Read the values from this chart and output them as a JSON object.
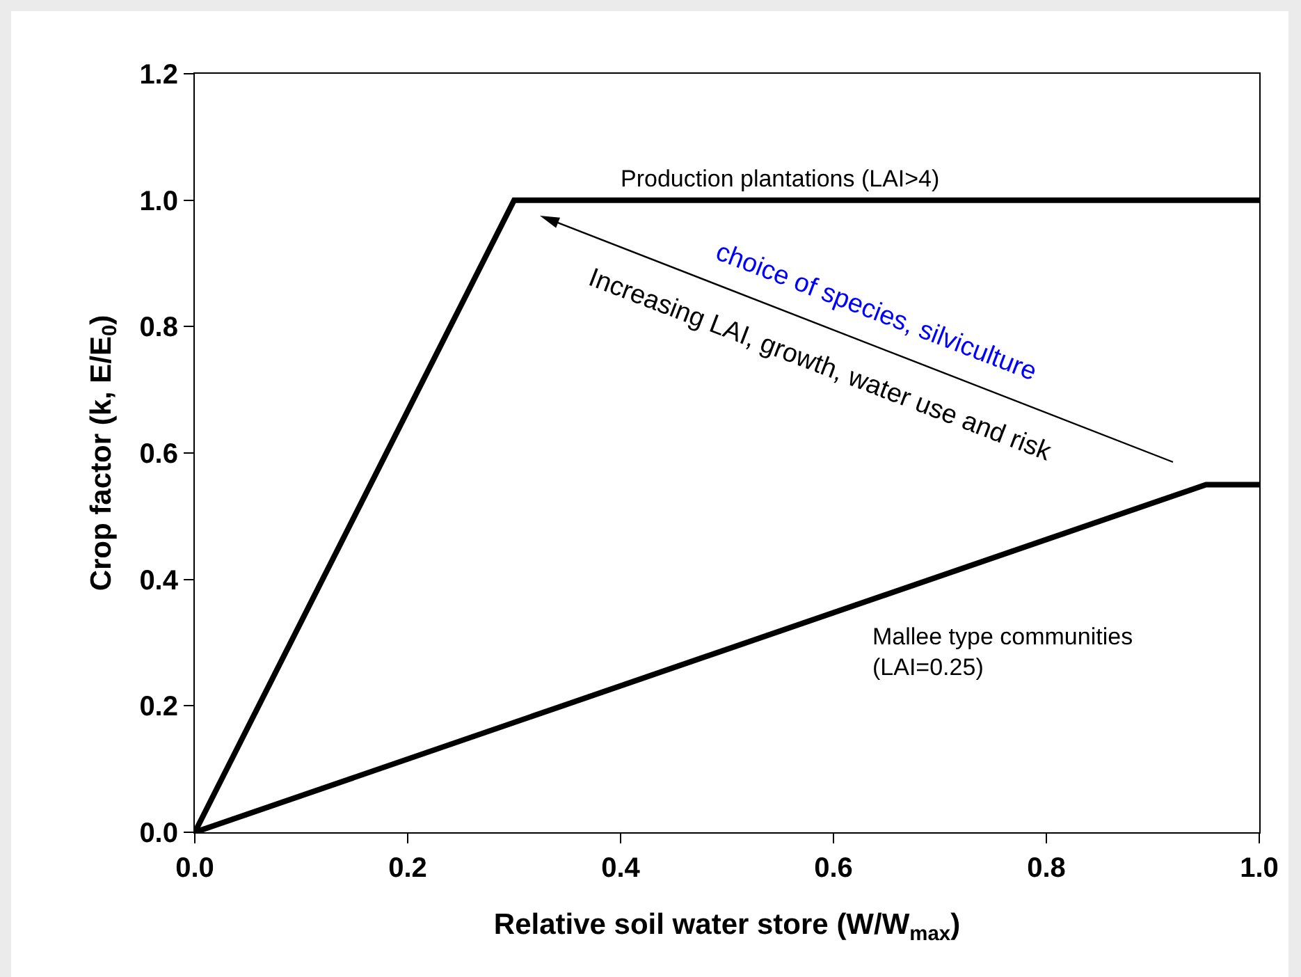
{
  "chart_data": {
    "type": "line",
    "xlabel": "Relative soil water store (W/W$_{max}$)",
    "ylabel": "Crop factor (k, E/E$_{0}$)",
    "series": [
      {
        "color": "#000000",
        "x": [
          0,
          0.3,
          1.0
        ],
        "values": [
          0,
          1.0,
          1.0
        ]
      },
      {
        "color": "#000000",
        "x": [
          0,
          0.95,
          1.0
        ],
        "values": [
          0,
          0.55,
          0.55
        ]
      }
    ],
    "xlim": [
      0,
      1.0
    ],
    "xticks": [
      {
        "value": 0,
        "label": "0.0"
      },
      0.2,
      0.4,
      0.6,
      0.8,
      {
        "value": 1,
        "label": "1.0"
      }
    ],
    "ylim": [
      0,
      1.2
    ],
    "yticks": [
      {
        "value": 0,
        "label": "0.0"
      },
      0.2,
      0.4,
      0.6,
      0.8,
      {
        "value": 1,
        "label": "1.0"
      },
      1.2
    ],
    "grid": false,
    "marker": "none",
    "line_style": "solid",
    "annotations": [
      {
        "text": "Production plantations (LAI>4)",
        "x": 0.55,
        "y": 1.0
      },
      "Mallee type communities\n(LAI=0.25)",
      "choice of species, silviculture",
      "Increasing LAI, growth, water use and risk"
    ]
  }
}
